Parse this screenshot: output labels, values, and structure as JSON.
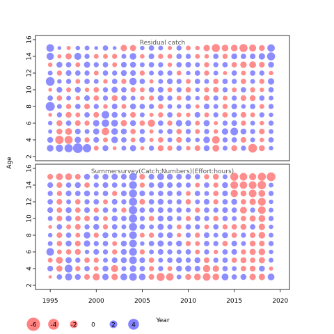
{
  "chart_data": {
    "type": "scatter",
    "xlabel": "Year",
    "ylabel": "Age",
    "xlim": [
      1993.4,
      2021.0
    ],
    "x_ticks": [
      1995,
      2000,
      2005,
      2010,
      2015,
      2020
    ],
    "colors": {
      "negative": "#ff3030",
      "positive": "#3030ff"
    },
    "years": [
      1995,
      1996,
      1997,
      1998,
      1999,
      2000,
      2001,
      2002,
      2003,
      2004,
      2005,
      2006,
      2007,
      2008,
      2009,
      2010,
      2011,
      2012,
      2013,
      2014,
      2015,
      2016,
      2017,
      2018,
      2019
    ],
    "legend": {
      "placement": "bottom-left",
      "entries": [
        {
          "label": "-6",
          "value": -6
        },
        {
          "label": "-4",
          "value": -4
        },
        {
          "label": "-2",
          "value": -2
        },
        {
          "label": "0",
          "value": 0
        },
        {
          "label": "2",
          "value": 2
        },
        {
          "label": "4",
          "value": 4
        }
      ]
    },
    "panels": [
      {
        "title": "Residual catch",
        "ylim": [
          1.5,
          16.5
        ],
        "y_ticks": [
          2,
          4,
          6,
          8,
          10,
          12,
          14,
          16
        ],
        "ages": [
          3,
          4,
          5,
          6,
          7,
          8,
          9,
          10,
          11,
          12,
          13,
          14,
          15
        ],
        "residuals": [
          [
            1.5,
            1.8,
            2.3,
            3.2,
            2.4,
            -0.8,
            1.2,
            -0.5,
            0.8,
            1.3,
            -0.6,
            0.9,
            -1.2,
            -0.9,
            1.0,
            -0.7,
            -1.1,
            1.2,
            -1.6,
            0.8,
            -1.2,
            0.9,
            -2.6,
            -1.2,
            0.7
          ],
          [
            1.2,
            -2.4,
            -2.2,
            1.4,
            -0.9,
            1.1,
            -0.8,
            1.5,
            1.0,
            -0.8,
            1.2,
            -0.6,
            -1.0,
            0.8,
            -1.1,
            0.9,
            0.7,
            1.5,
            -2.0,
            0.9,
            1.0,
            -1.1,
            0.8,
            -0.7,
            1.0
          ],
          [
            0.6,
            -1.2,
            -1.6,
            1.1,
            0.8,
            1.3,
            -1.9,
            1.5,
            1.2,
            -1.0,
            0.9,
            -0.6,
            0.7,
            1.0,
            -1.0,
            0.9,
            -0.8,
            0.9,
            -0.7,
            1.4,
            2.0,
            1.2,
            0.9,
            -1.1,
            0.8
          ],
          [
            0.7,
            -1.2,
            1.0,
            -1.1,
            -0.9,
            1.4,
            1.9,
            1.6,
            -1.3,
            1.2,
            -1.0,
            -1.8,
            1.0,
            -0.9,
            1.4,
            1.2,
            -0.8,
            1.3,
            -0.6,
            0.9,
            1.1,
            -0.9,
            0.8,
            -0.7,
            0.9
          ],
          [
            -0.5,
            0.9,
            -1.2,
            -0.8,
            1.0,
            -1.1,
            2.0,
            1.2,
            0.9,
            -1.1,
            0.8,
            -0.6,
            -0.9,
            1.0,
            -0.8,
            -0.7,
            1.1,
            -0.8,
            0.9,
            -1.0,
            1.0,
            -1.1,
            -0.8,
            0.9,
            0.7
          ],
          [
            2.8,
            0.8,
            -0.9,
            1.0,
            -1.1,
            0.9,
            -0.7,
            1.1,
            -0.8,
            1.2,
            1.0,
            0.9,
            -0.9,
            0.8,
            0.7,
            1.0,
            -0.6,
            1.1,
            0.8,
            -0.9,
            1.1,
            0.7,
            1.0,
            -0.8,
            0.9
          ],
          [
            1.0,
            -1.0,
            0.8,
            -0.7,
            1.1,
            -1.0,
            0.9,
            -1.2,
            1.0,
            0.8,
            -0.7,
            -0.9,
            1.2,
            0.9,
            -0.8,
            1.0,
            0.7,
            -1.1,
            0.9,
            -0.8,
            0.9,
            -1.1,
            -1.2,
            1.0,
            0.8
          ],
          [
            -0.5,
            1.1,
            -0.8,
            1.2,
            -0.7,
            -1.0,
            0.9,
            1.3,
            1.0,
            -0.9,
            -0.8,
            1.0,
            1.1,
            -0.8,
            0.9,
            -1.0,
            0.7,
            -0.9,
            -1.1,
            0.9,
            -0.8,
            1.0,
            -0.9,
            -0.7,
            1.0
          ],
          [
            2.6,
            0.7,
            0.9,
            -0.8,
            1.0,
            0.8,
            -0.7,
            1.0,
            -0.9,
            1.8,
            1.0,
            -0.6,
            0.8,
            1.1,
            0.9,
            -0.8,
            1.0,
            0.8,
            -1.0,
            1.0,
            0.9,
            -1.0,
            0.8,
            -0.9,
            1.4
          ],
          [
            0.8,
            -0.9,
            1.1,
            1.0,
            0.9,
            -0.8,
            1.0,
            0.9,
            1.2,
            1.1,
            -0.9,
            0.8,
            1.0,
            0.9,
            -0.8,
            0.7,
            1.0,
            -0.9,
            0.8,
            -0.6,
            1.0,
            -0.8,
            1.0,
            0.9,
            -0.7
          ],
          [
            -0.7,
            1.2,
            1.0,
            -0.8,
            1.3,
            0.9,
            1.0,
            -0.8,
            1.1,
            1.2,
            0.8,
            1.0,
            0.9,
            -0.7,
            1.0,
            1.1,
            0.8,
            -0.9,
            0.9,
            1.0,
            -1.0,
            -1.4,
            -1.6,
            -1.1,
            1.2
          ],
          [
            1.8,
            -0.6,
            -1.3,
            1.7,
            0.9,
            -0.8,
            -0.8,
            -0.9,
            0.8,
            1.5,
            -0.7,
            1.1,
            -0.9,
            -0.8,
            1.0,
            0.9,
            -0.8,
            -0.7,
            1.0,
            -0.9,
            1.2,
            1.0,
            1.1,
            1.4,
            2.2
          ],
          [
            2.0,
            0.5,
            -0.6,
            0.7,
            0.8,
            0.5,
            1.0,
            0.5,
            -1.4,
            -1.3,
            0.7,
            1.0,
            0.8,
            -0.6,
            0.9,
            -0.8,
            -0.7,
            -1.4,
            -2.2,
            -1.5,
            -1.5,
            -2.2,
            -1.7,
            -1.2,
            1.9
          ]
        ]
      },
      {
        "title": "Summersurvey(Catch:Numbers)(Effort:hours)",
        "ylim": [
          1.5,
          16.5
        ],
        "y_ticks": [
          2,
          4,
          6,
          8,
          10,
          12,
          14,
          16
        ],
        "ages": [
          3,
          4,
          5,
          6,
          7,
          8,
          9,
          10,
          11,
          12,
          13,
          14,
          15
        ],
        "residuals": [
          [
            -0.4,
            1.0,
            1.7,
            1.2,
            -1.1,
            -1.7,
            1.4,
            -1.4,
            1.6,
            2.0,
            1.5,
            -1.1,
            -2.2,
            -1.9,
            0.8,
            -1.2,
            -1.5,
            -2.0,
            -1.5,
            1.6,
            1.0,
            1.2,
            -1.4,
            -1.4,
            1.6
          ],
          [
            1.1,
            -1.3,
            2.1,
            -0.9,
            1.0,
            -0.8,
            1.2,
            -1.7,
            0.8,
            1.5,
            1.0,
            -0.9,
            0.9,
            -0.8,
            1.2,
            1.3,
            1.1,
            -1.8,
            -1.4,
            1.0,
            0.8,
            -1.0,
            -1.2,
            1.2,
            -0.6
          ],
          [
            -0.8,
            -1.6,
            1.3,
            0.9,
            -1.0,
            -0.9,
            0.8,
            1.1,
            1.2,
            2.0,
            1.1,
            -1.0,
            0.8,
            1.0,
            1.2,
            0.9,
            1.2,
            -1.1,
            0.9,
            1.0,
            -1.0,
            -1.2,
            -1.0,
            -1.3,
            0.8
          ],
          [
            2.0,
            -0.8,
            -1.0,
            -1.2,
            0.7,
            1.1,
            0.9,
            -0.9,
            1.2,
            2.1,
            -0.9,
            0.8,
            1.1,
            0.9,
            0.8,
            1.0,
            -0.8,
            0.9,
            -0.7,
            1.0,
            1.1,
            -0.9,
            -1.3,
            -1.5,
            0.7
          ],
          [
            0.8,
            -1.0,
            1.2,
            -1.1,
            1.4,
            0.9,
            1.0,
            -0.8,
            1.2,
            2.0,
            0.7,
            1.0,
            1.3,
            0.8,
            1.2,
            -0.9,
            -0.8,
            1.0,
            0.9,
            -1.0,
            1.1,
            0.8,
            -1.2,
            -1.1,
            0.9
          ],
          [
            0.7,
            -1.1,
            1.0,
            -0.8,
            1.5,
            -0.9,
            1.2,
            1.0,
            0.8,
            2.0,
            -0.8,
            -0.9,
            1.0,
            1.2,
            -0.7,
            0.9,
            -0.9,
            1.1,
            0.8,
            1.2,
            -1.0,
            0.9,
            -1.1,
            -1.5,
            0.8
          ],
          [
            -0.5,
            1.0,
            -0.8,
            -1.1,
            0.9,
            1.2,
            -0.9,
            1.0,
            0.8,
            2.2,
            1.0,
            0.8,
            1.3,
            0.9,
            -0.8,
            1.0,
            0.9,
            -0.8,
            1.0,
            -0.9,
            -1.0,
            -1.2,
            1.0,
            -1.4,
            0.7
          ],
          [
            0.8,
            -1.1,
            1.2,
            -1.0,
            -1.1,
            1.0,
            -0.8,
            1.2,
            1.0,
            2.3,
            0.9,
            -1.0,
            1.2,
            1.1,
            0.8,
            -0.9,
            1.1,
            0.9,
            -1.0,
            1.0,
            0.8,
            -1.0,
            -1.3,
            -1.6,
            0.9
          ],
          [
            1.1,
            -1.0,
            1.2,
            -1.0,
            1.1,
            -0.9,
            1.0,
            0.8,
            -0.9,
            2.4,
            1.0,
            0.9,
            1.1,
            0.9,
            1.0,
            0.8,
            -0.9,
            1.0,
            0.9,
            1.1,
            1.0,
            -1.6,
            0.9,
            -2.0,
            0.8
          ],
          [
            1.0,
            -1.1,
            0.8,
            -1.0,
            0.9,
            1.0,
            -0.8,
            1.1,
            0.9,
            2.3,
            -1.1,
            1.0,
            1.2,
            0.8,
            0.9,
            -1.0,
            0.8,
            1.1,
            -0.9,
            1.0,
            1.2,
            -1.0,
            -1.4,
            -2.1,
            0.7
          ],
          [
            0.9,
            -0.9,
            1.1,
            1.0,
            1.2,
            0.8,
            1.0,
            -0.9,
            1.1,
            2.2,
            1.1,
            0.8,
            1.0,
            1.0,
            0.9,
            -0.8,
            1.0,
            0.8,
            -1.0,
            1.1,
            -1.8,
            -1.2,
            -2.0,
            -1.6,
            0.9
          ],
          [
            1.1,
            -1.1,
            1.0,
            1.2,
            -1.0,
            0.9,
            1.1,
            1.0,
            0.8,
            2.1,
            -0.9,
            1.0,
            1.3,
            1.1,
            1.0,
            0.9,
            -0.8,
            1.0,
            -0.9,
            1.2,
            -2.0,
            -1.9,
            -2.0,
            -2.4,
            0.8
          ],
          [
            -1.1,
            -1.6,
            -1.6,
            -1.1,
            1.2,
            0.9,
            1.2,
            1.3,
            1.1,
            2.0,
            -1.1,
            1.1,
            1.6,
            1.2,
            1.1,
            1.1,
            1.0,
            -0.9,
            -1.2,
            0.8,
            -2.2,
            -2.0,
            -1.7,
            -2.2,
            -2.6
          ]
        ]
      }
    ]
  }
}
